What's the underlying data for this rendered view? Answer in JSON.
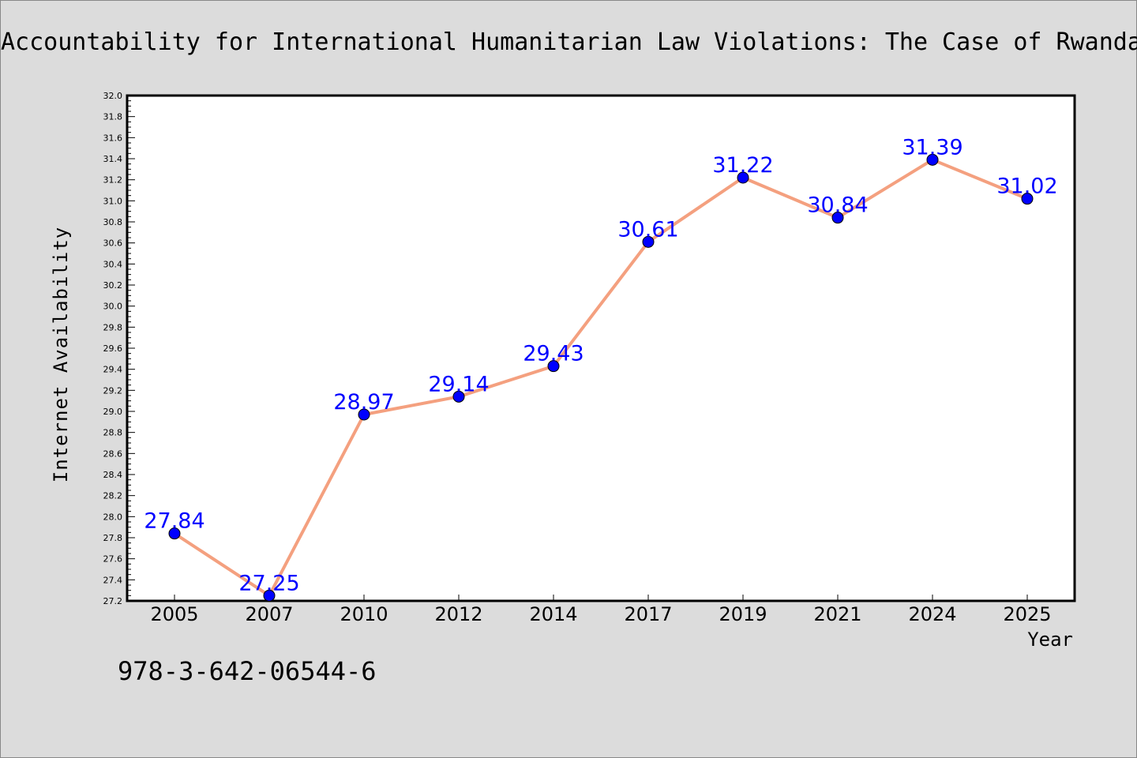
{
  "chart_data": {
    "type": "line",
    "title": "Accountability for International Humanitarian Law Violations: The Case of Rwanda",
    "xlabel": "Year",
    "ylabel": "Internet Availability",
    "categories": [
      "2005",
      "2007",
      "2010",
      "2012",
      "2014",
      "2017",
      "2019",
      "2021",
      "2024",
      "2025"
    ],
    "series": [
      {
        "values": [
          27.84,
          27.25,
          28.97,
          29.14,
          29.43,
          30.61,
          31.22,
          30.84,
          31.39,
          31.02
        ],
        "labels": [
          "27.84",
          "27.25",
          "28.97",
          "29.14",
          "29.43",
          "30.61",
          "31.22",
          "30.84",
          "31.39",
          "31.02"
        ]
      }
    ],
    "ylim": [
      27.2,
      32.0
    ],
    "yticks": [
      "27.2",
      "27.4",
      "27.6",
      "27.8",
      "28.0",
      "28.2",
      "28.4",
      "28.6",
      "28.8",
      "29.0",
      "29.2",
      "29.4",
      "29.6",
      "29.8",
      "30.0",
      "30.2",
      "30.4",
      "30.6",
      "30.8",
      "31.0",
      "31.2",
      "31.4",
      "31.6",
      "31.8",
      "32.0"
    ],
    "grid": false,
    "legend": "none",
    "colors": {
      "line": "#f4a07f",
      "marker": "#0000ff",
      "label": "#0000ff",
      "background": "#dcdcdc",
      "plot_background": "#ffffff"
    }
  },
  "footer": {
    "isbn": "978-3-642-06544-6"
  }
}
